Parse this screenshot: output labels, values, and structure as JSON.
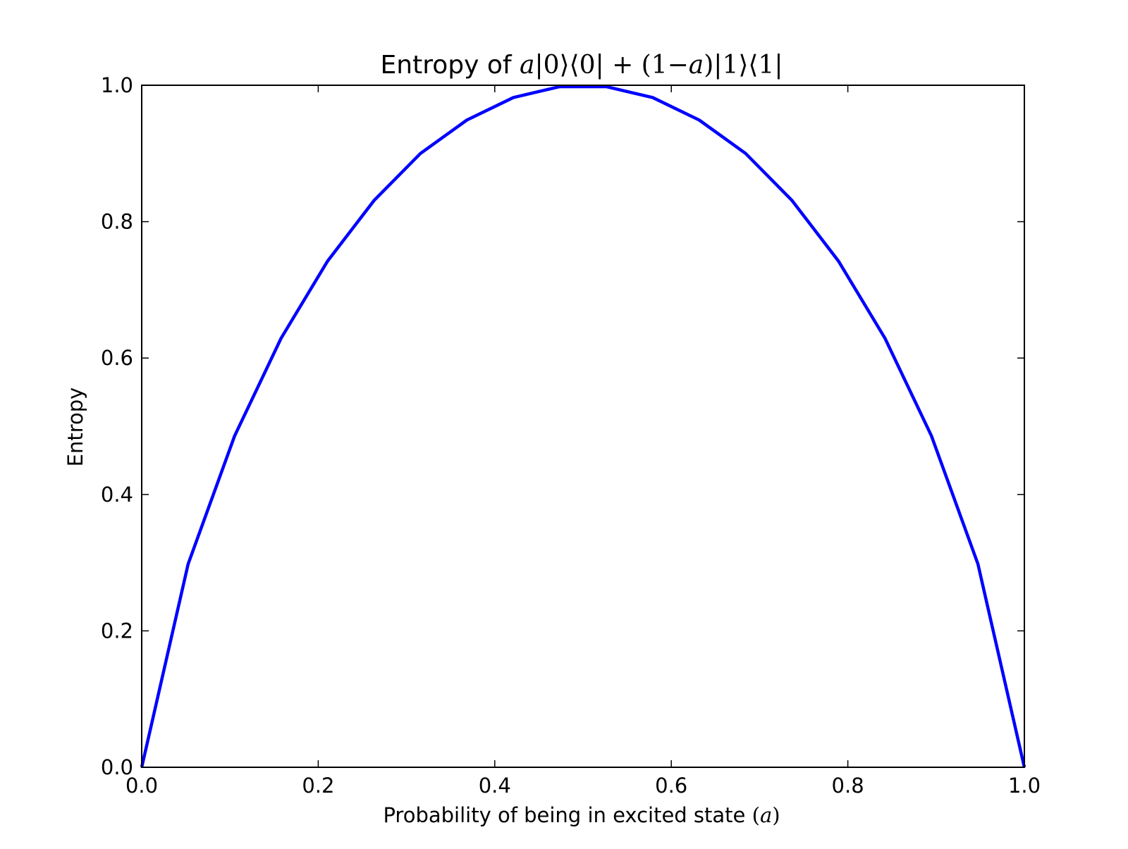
{
  "chart_data": {
    "type": "line",
    "title_prefix": "Entropy of ",
    "title_math": [
      {
        "t": "a",
        "it": true
      },
      {
        "t": "|0⟩⟨0| + (1−",
        "it": false
      },
      {
        "t": "a",
        "it": true
      },
      {
        "t": ")|1⟩⟨1|",
        "it": false
      }
    ],
    "xlabel_text": "Probability of being in excited state ",
    "xlabel_math": [
      {
        "t": "(",
        "it": false
      },
      {
        "t": "a",
        "it": true
      },
      {
        "t": ")",
        "it": false
      }
    ],
    "ylabel": "Entropy",
    "xlim": [
      0.0,
      1.0
    ],
    "ylim": [
      0.0,
      1.0
    ],
    "xticks": [
      "0.0",
      "0.2",
      "0.4",
      "0.6",
      "0.8",
      "1.0"
    ],
    "yticks": [
      "0.0",
      "0.2",
      "0.4",
      "0.6",
      "0.8",
      "1.0"
    ],
    "grid": false,
    "line_color": "#0000ff",
    "series": [
      {
        "x": [
          0.0,
          0.0526,
          0.1053,
          0.1579,
          0.2105,
          0.2632,
          0.3158,
          0.3684,
          0.4211,
          0.4737,
          0.5263,
          0.5789,
          0.6316,
          0.6842,
          0.7368,
          0.7895,
          0.8421,
          0.8947,
          0.9474,
          1.0
        ],
        "y": [
          0.0,
          0.298,
          0.486,
          0.629,
          0.742,
          0.831,
          0.9,
          0.949,
          0.982,
          0.998,
          0.998,
          0.982,
          0.949,
          0.9,
          0.831,
          0.742,
          0.629,
          0.486,
          0.298,
          0.0
        ]
      }
    ]
  }
}
